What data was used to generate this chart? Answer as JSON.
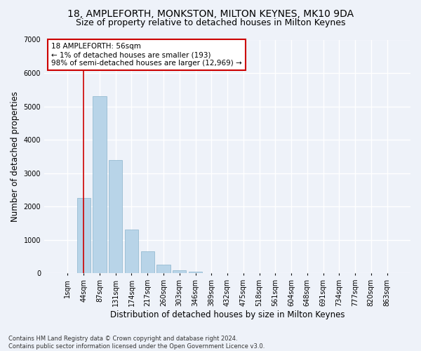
{
  "title1": "18, AMPLEFORTH, MONKSTON, MILTON KEYNES, MK10 9DA",
  "title2": "Size of property relative to detached houses in Milton Keynes",
  "xlabel": "Distribution of detached houses by size in Milton Keynes",
  "ylabel": "Number of detached properties",
  "footnote": "Contains HM Land Registry data © Crown copyright and database right 2024.\nContains public sector information licensed under the Open Government Licence v3.0.",
  "bar_labels": [
    "1sqm",
    "44sqm",
    "87sqm",
    "131sqm",
    "174sqm",
    "217sqm",
    "260sqm",
    "303sqm",
    "346sqm",
    "389sqm",
    "432sqm",
    "475sqm",
    "518sqm",
    "561sqm",
    "604sqm",
    "648sqm",
    "691sqm",
    "734sqm",
    "777sqm",
    "820sqm",
    "863sqm"
  ],
  "bar_values": [
    10,
    2250,
    5300,
    3400,
    1300,
    650,
    250,
    100,
    50,
    10,
    0,
    0,
    0,
    0,
    0,
    0,
    0,
    0,
    0,
    0,
    0
  ],
  "bar_color": "#b8d4e8",
  "bar_edge_color": "#8ab4cc",
  "vline_x": 1.0,
  "vline_color": "#cc0000",
  "annotation_text": "18 AMPLEFORTH: 56sqm\n← 1% of detached houses are smaller (193)\n98% of semi-detached houses are larger (12,969) →",
  "annotation_box_color": "#ffffff",
  "annotation_box_edge": "#cc0000",
  "ylim": [
    0,
    7000
  ],
  "yticks": [
    0,
    1000,
    2000,
    3000,
    4000,
    5000,
    6000,
    7000
  ],
  "background_color": "#eef2f9",
  "grid_color": "#ffffff",
  "title1_fontsize": 10,
  "title2_fontsize": 9,
  "xlabel_fontsize": 8.5,
  "ylabel_fontsize": 8.5,
  "annot_fontsize": 7.5,
  "tick_fontsize": 7,
  "footnote_fontsize": 6
}
